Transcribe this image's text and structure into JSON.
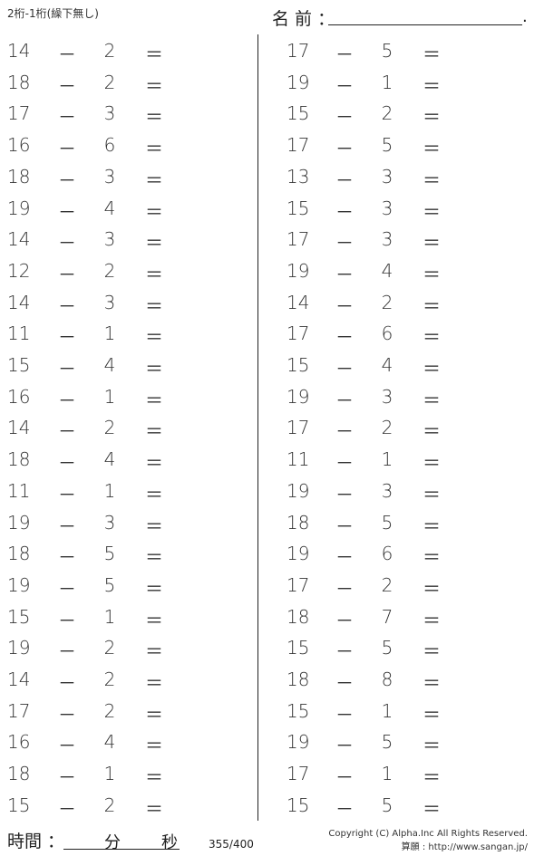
{
  "header": {
    "subtitle": "2桁-1桁(繰下無し)",
    "name_label": "名 前 ：",
    "name_end": "."
  },
  "operator": "－",
  "equals": "＝",
  "left": [
    [
      "14",
      "2"
    ],
    [
      "18",
      "2"
    ],
    [
      "17",
      "3"
    ],
    [
      "16",
      "6"
    ],
    [
      "18",
      "3"
    ],
    [
      "19",
      "4"
    ],
    [
      "14",
      "3"
    ],
    [
      "12",
      "2"
    ],
    [
      "14",
      "3"
    ],
    [
      "11",
      "1"
    ],
    [
      "15",
      "4"
    ],
    [
      "16",
      "1"
    ],
    [
      "14",
      "2"
    ],
    [
      "18",
      "4"
    ],
    [
      "11",
      "1"
    ],
    [
      "19",
      "3"
    ],
    [
      "18",
      "5"
    ],
    [
      "19",
      "5"
    ],
    [
      "15",
      "1"
    ],
    [
      "19",
      "2"
    ],
    [
      "14",
      "2"
    ],
    [
      "17",
      "2"
    ],
    [
      "16",
      "4"
    ],
    [
      "18",
      "1"
    ],
    [
      "15",
      "2"
    ]
  ],
  "right": [
    [
      "17",
      "5"
    ],
    [
      "19",
      "1"
    ],
    [
      "15",
      "2"
    ],
    [
      "17",
      "5"
    ],
    [
      "13",
      "3"
    ],
    [
      "15",
      "3"
    ],
    [
      "17",
      "3"
    ],
    [
      "19",
      "4"
    ],
    [
      "14",
      "2"
    ],
    [
      "17",
      "6"
    ],
    [
      "15",
      "4"
    ],
    [
      "19",
      "3"
    ],
    [
      "17",
      "2"
    ],
    [
      "11",
      "1"
    ],
    [
      "19",
      "3"
    ],
    [
      "18",
      "5"
    ],
    [
      "19",
      "6"
    ],
    [
      "17",
      "2"
    ],
    [
      "18",
      "7"
    ],
    [
      "15",
      "5"
    ],
    [
      "18",
      "8"
    ],
    [
      "15",
      "1"
    ],
    [
      "19",
      "5"
    ],
    [
      "17",
      "1"
    ],
    [
      "15",
      "5"
    ]
  ],
  "footer": {
    "time_label": "時間 ：",
    "minutes": "分",
    "seconds": "秒",
    "count": "355/400",
    "copyright": "Copyright (C) Alpha.Inc All Rights Reserved.",
    "site": "算願 : http://www.sangan.jp/"
  }
}
